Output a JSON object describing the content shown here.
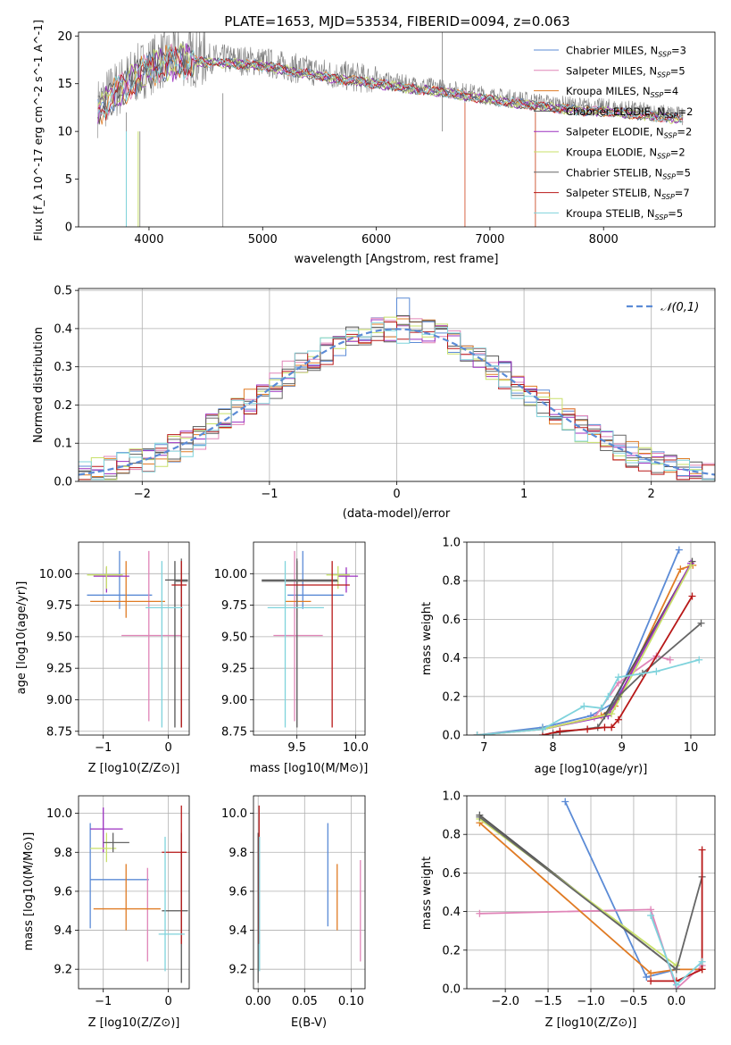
{
  "colors": [
    "#5b8bd6",
    "#e085b8",
    "#e07b24",
    "#555555",
    "#9b30c0",
    "#c8e06a",
    "#666666",
    "#b81818",
    "#7fd3dc"
  ],
  "chart_data": [
    {
      "id": "spectrum",
      "type": "line",
      "title": "PLATE=1653, MJD=53534, FIBERID=0094, z=0.063",
      "xlabel": "wavelength [Angstrom, rest frame]",
      "ylabel": "Flux [f_λ 10^-17 erg cm^-2 s^-1 A^-1]",
      "xlim": [
        3380,
        8980
      ],
      "ylim": [
        0,
        20.4
      ],
      "xticks": [
        4000,
        5000,
        6000,
        7000,
        8000
      ],
      "yticks": [
        0,
        5,
        10,
        15,
        20
      ],
      "grid": false,
      "legend_position": "top-right",
      "observed_color": "#808080",
      "series": [
        {
          "name": "Chabrier MILES, N_SSP=3"
        },
        {
          "name": "Salpeter MILES, N_SSP=5"
        },
        {
          "name": "Kroupa MILES, N_SSP=4"
        },
        {
          "name": "Chabrier ELODIE, N_SSP=2"
        },
        {
          "name": "Salpeter ELODIE, N_SSP=2"
        },
        {
          "name": "Kroupa ELODIE, N_SSP=2"
        },
        {
          "name": "Chabrier STELIB, N_SSP=5"
        },
        {
          "name": "Salpeter STELIB, N_SSP=7"
        },
        {
          "name": "Kroupa STELIB, N_SSP=5"
        }
      ],
      "continuum": {
        "x": [
          3550,
          3650,
          3800,
          3950,
          4100,
          4300,
          4600,
          5000,
          5300,
          5600,
          6000,
          6300,
          6600,
          6800,
          7000,
          7200,
          7400,
          7600,
          7800,
          8000,
          8200,
          8400,
          8600,
          8700
        ],
        "y": [
          12.5,
          13.8,
          15.2,
          16.5,
          17.5,
          17.8,
          17.6,
          17.3,
          16.6,
          16.0,
          15.4,
          14.9,
          14.5,
          14.1,
          13.7,
          13.4,
          13.1,
          12.8,
          12.6,
          12.5,
          12.3,
          12.0,
          11.8,
          11.6
        ]
      },
      "spikes": [
        {
          "x": 3800,
          "y0": 0,
          "y1": 12
        },
        {
          "x": 3920,
          "y0": 0,
          "y1": 10
        },
        {
          "x": 4650,
          "y0": 0,
          "y1": 14
        },
        {
          "x": 6580,
          "y0": 10,
          "y1": 20.4
        },
        {
          "x": 6780,
          "y0": 0,
          "y1": 14
        },
        {
          "x": 7400,
          "y0": 0,
          "y1": 13
        }
      ]
    },
    {
      "id": "residuals",
      "type": "step",
      "xlabel": "(data-model)/error",
      "ylabel": "Normed distribution",
      "xlim": [
        -2.5,
        2.5
      ],
      "ylim": [
        0,
        0.505
      ],
      "xticks": [
        -2,
        -1,
        0,
        1,
        2
      ],
      "yticks": [
        0.0,
        0.1,
        0.2,
        0.3,
        0.4,
        0.5
      ],
      "grid": true,
      "legend_position": "top-right",
      "reference": {
        "name": "𝒩(0,1)",
        "mean": 0,
        "sigma": 1,
        "color": "#5b8bd6"
      },
      "bin_width": 0.1,
      "peak_series_bin": {
        "series": 0,
        "x": 0.05,
        "y": 0.48
      }
    },
    {
      "id": "age-vs-Z",
      "type": "errorbar",
      "xlabel": "Z [log10(Z/Z⊙)]",
      "ylabel": "age [log10(age/yr)]",
      "xlim": [
        -1.38,
        0.32
      ],
      "ylim": [
        8.72,
        10.25
      ],
      "xticks": [
        -1,
        0
      ],
      "yticks": [
        8.75,
        9.0,
        9.25,
        9.5,
        9.75,
        10.0
      ],
      "grid": true,
      "points": [
        {
          "c": 0,
          "x": -0.75,
          "y": 9.83,
          "xlo": -1.25,
          "xhi": -0.25,
          "ylo": 9.72,
          "yhi": 10.18
        },
        {
          "c": 1,
          "x": -0.3,
          "y": 9.51,
          "xlo": -0.72,
          "xhi": 0.2,
          "ylo": 8.83,
          "yhi": 10.18
        },
        {
          "c": 2,
          "x": -0.65,
          "y": 9.78,
          "xlo": -1.2,
          "xhi": -0.05,
          "ylo": 9.65,
          "yhi": 10.1
        },
        {
          "c": 3,
          "x": 0.1,
          "y": 9.95,
          "xlo": -0.05,
          "xhi": 0.3,
          "ylo": 8.78,
          "yhi": 10.1
        },
        {
          "c": 4,
          "x": -0.95,
          "y": 9.98,
          "xlo": -1.15,
          "xhi": -0.6,
          "ylo": 9.85,
          "yhi": 10.05
        },
        {
          "c": 5,
          "x": -0.95,
          "y": 9.99,
          "xlo": -1.25,
          "xhi": -0.7,
          "ylo": 9.88,
          "yhi": 10.06
        },
        {
          "c": 6,
          "x": 0.2,
          "y": 9.94,
          "xlo": 0.1,
          "xhi": 0.3,
          "ylo": 8.78,
          "yhi": 10.12
        },
        {
          "c": 7,
          "x": 0.2,
          "y": 9.91,
          "xlo": 0.05,
          "xhi": 0.28,
          "ylo": 8.78,
          "yhi": 10.1
        },
        {
          "c": 8,
          "x": -0.1,
          "y": 9.73,
          "xlo": -0.35,
          "xhi": 0.22,
          "ylo": 8.78,
          "yhi": 10.1
        }
      ]
    },
    {
      "id": "age-vs-mass",
      "type": "errorbar",
      "xlabel": "mass [log10(M/M⊙)]",
      "ylabel": "",
      "xlim": [
        9.13,
        10.08
      ],
      "ylim": [
        8.72,
        10.25
      ],
      "xticks": [
        9.5,
        10.0
      ],
      "yticks": [
        8.75,
        9.0,
        9.25,
        9.5,
        9.75,
        10.0
      ],
      "grid": true,
      "points": [
        {
          "c": 0,
          "x": 9.55,
          "y": 9.83,
          "xlo": 9.42,
          "xhi": 9.9,
          "ylo": 9.72,
          "yhi": 10.18
        },
        {
          "c": 1,
          "x": 9.48,
          "y": 9.51,
          "xlo": 9.3,
          "xhi": 9.72,
          "ylo": 8.83,
          "yhi": 10.18
        },
        {
          "c": 2,
          "x": 9.5,
          "y": 9.78,
          "xlo": 9.4,
          "xhi": 9.62,
          "ylo": 9.65,
          "yhi": 10.1
        },
        {
          "c": 3,
          "x": 9.5,
          "y": 9.95,
          "xlo": 9.2,
          "xhi": 9.85,
          "ylo": 8.78,
          "yhi": 10.1
        },
        {
          "c": 4,
          "x": 9.92,
          "y": 9.98,
          "xlo": 9.85,
          "xhi": 10.02,
          "ylo": 9.85,
          "yhi": 10.05
        },
        {
          "c": 5,
          "x": 9.85,
          "y": 9.99,
          "xlo": 9.75,
          "xhi": 9.95,
          "ylo": 9.88,
          "yhi": 10.06
        },
        {
          "c": 6,
          "x": 9.5,
          "y": 9.94,
          "xlo": 9.2,
          "xhi": 9.85,
          "ylo": 8.78,
          "yhi": 10.12
        },
        {
          "c": 7,
          "x": 9.8,
          "y": 9.91,
          "xlo": 9.4,
          "xhi": 9.95,
          "ylo": 8.78,
          "yhi": 10.1
        },
        {
          "c": 8,
          "x": 9.4,
          "y": 9.73,
          "xlo": 9.25,
          "xhi": 9.73,
          "ylo": 8.78,
          "yhi": 10.1
        }
      ]
    },
    {
      "id": "cumulative-age",
      "type": "line",
      "xlabel": "age [log10(age/yr)]",
      "ylabel": "mass weight",
      "xlim": [
        6.75,
        10.35
      ],
      "ylim": [
        0,
        1.0
      ],
      "xticks": [
        7,
        8,
        9,
        10
      ],
      "yticks": [
        0.0,
        0.2,
        0.4,
        0.6,
        0.8,
        1.0
      ],
      "grid": true,
      "series": [
        {
          "c": 0,
          "x": [
            6.9,
            7.85,
            8.55,
            8.9,
            9.83
          ],
          "y": [
            0.0,
            0.04,
            0.1,
            0.17,
            0.96
          ]
        },
        {
          "c": 1,
          "x": [
            6.9,
            7.85,
            8.6,
            8.95,
            9.5,
            9.7
          ],
          "y": [
            0.0,
            0.03,
            0.09,
            0.27,
            0.41,
            0.39
          ]
        },
        {
          "c": 2,
          "x": [
            6.9,
            7.85,
            8.7,
            8.9,
            9.85,
            10.03
          ],
          "y": [
            0.0,
            0.03,
            0.1,
            0.15,
            0.86,
            0.88
          ]
        },
        {
          "c": 3,
          "x": [
            7.85,
            8.75,
            10.02
          ],
          "y": [
            0.03,
            0.1,
            0.9
          ]
        },
        {
          "c": 4,
          "x": [
            7.85,
            8.8,
            10.0
          ],
          "y": [
            0.03,
            0.1,
            0.89
          ]
        },
        {
          "c": 5,
          "x": [
            7.85,
            8.85,
            10.0
          ],
          "y": [
            0.03,
            0.11,
            0.88
          ]
        },
        {
          "c": 6,
          "x": [
            8.0,
            8.65,
            8.95,
            9.3,
            10.15
          ],
          "y": [
            0.01,
            0.04,
            0.2,
            0.32,
            0.58
          ]
        },
        {
          "c": 7,
          "x": [
            7.85,
            8.1,
            8.5,
            8.75,
            8.85,
            8.95,
            10.02
          ],
          "y": [
            0.0,
            0.02,
            0.03,
            0.04,
            0.04,
            0.08,
            0.72
          ]
        },
        {
          "c": 8,
          "x": [
            6.9,
            7.85,
            8.45,
            8.7,
            8.8,
            8.95,
            9.5,
            10.12
          ],
          "y": [
            0.0,
            0.03,
            0.15,
            0.14,
            0.2,
            0.3,
            0.33,
            0.39
          ]
        }
      ]
    },
    {
      "id": "mass-vs-Z",
      "type": "errorbar",
      "xlabel": "Z [log10(Z/Z⊙)]",
      "ylabel": "mass [log10(M/M⊙)]",
      "xlim": [
        -1.38,
        0.32
      ],
      "ylim": [
        9.1,
        10.09
      ],
      "xticks": [
        -1,
        0
      ],
      "yticks": [
        9.2,
        9.4,
        9.6,
        9.8,
        10.0
      ],
      "grid": true,
      "points": [
        {
          "c": 0,
          "x": -1.2,
          "y": 9.66,
          "xlo": -1.2,
          "xhi": -0.3,
          "ylo": 9.41,
          "yhi": 9.95
        },
        {
          "c": 1,
          "x": -0.32,
          "y": 9.48,
          "xlo": -0.32,
          "xhi": -0.32,
          "ylo": 9.24,
          "yhi": 9.72
        },
        {
          "c": 2,
          "x": -0.65,
          "y": 9.51,
          "xlo": -1.15,
          "xhi": -0.12,
          "ylo": 9.4,
          "yhi": 9.74
        },
        {
          "c": 3,
          "x": 0.2,
          "y": 9.5,
          "xlo": -0.1,
          "xhi": 0.3,
          "ylo": 9.13,
          "yhi": 9.9
        },
        {
          "c": 4,
          "x": -1.0,
          "y": 9.92,
          "xlo": -1.2,
          "xhi": -0.7,
          "ylo": 9.8,
          "yhi": 10.03
        },
        {
          "c": 5,
          "x": -0.95,
          "y": 9.82,
          "xlo": -1.2,
          "xhi": -0.8,
          "ylo": 9.75,
          "yhi": 9.9
        },
        {
          "c": 6,
          "x": -0.85,
          "y": 9.85,
          "xlo": -1.0,
          "xhi": -0.6,
          "ylo": 9.8,
          "yhi": 9.9
        },
        {
          "c": 7,
          "x": 0.2,
          "y": 9.8,
          "xlo": -0.1,
          "xhi": 0.28,
          "ylo": 9.33,
          "yhi": 10.04
        },
        {
          "c": 8,
          "x": -0.05,
          "y": 9.38,
          "xlo": -0.15,
          "xhi": 0.25,
          "ylo": 9.19,
          "yhi": 9.88
        }
      ]
    },
    {
      "id": "mass-vs-ebv",
      "type": "errorbar",
      "xlabel": "E(B-V)",
      "ylabel": "",
      "xlim": [
        -0.005,
        0.115
      ],
      "ylim": [
        9.1,
        10.09
      ],
      "xticks": [
        0.0,
        0.05,
        0.1
      ],
      "yticks": [
        9.2,
        9.4,
        9.6,
        9.8,
        10.0
      ],
      "grid": true,
      "points": [
        {
          "c": 0,
          "x": 0.075,
          "y": 9.66,
          "xlo": 0.075,
          "xhi": 0.075,
          "ylo": 9.42,
          "yhi": 9.95
        },
        {
          "c": 1,
          "x": 0.11,
          "y": 9.48,
          "xlo": 0.11,
          "xhi": 0.11,
          "ylo": 9.24,
          "yhi": 9.76
        },
        {
          "c": 2,
          "x": 0.085,
          "y": 9.51,
          "xlo": 0.085,
          "xhi": 0.085,
          "ylo": 9.4,
          "yhi": 9.74
        },
        {
          "c": 3,
          "x": 0.0,
          "y": 9.5,
          "xlo": 0.0,
          "xhi": 0.0,
          "ylo": 9.13,
          "yhi": 9.9
        },
        {
          "c": 7,
          "x": 0.001,
          "y": 9.8,
          "xlo": 0.001,
          "xhi": 0.001,
          "ylo": 9.33,
          "yhi": 10.04
        },
        {
          "c": 8,
          "x": 0.0015,
          "y": 9.38,
          "xlo": 0.0015,
          "xhi": 0.0015,
          "ylo": 9.19,
          "yhi": 9.88
        }
      ]
    },
    {
      "id": "cumulative-Z",
      "type": "line",
      "xlabel": "Z [log10(Z/Z⊙)]",
      "ylabel": "mass weight",
      "xlim": [
        -2.45,
        0.45
      ],
      "ylim": [
        0,
        1.0
      ],
      "xticks": [
        -2.0,
        -1.5,
        -1.0,
        -0.5,
        0.0
      ],
      "yticks": [
        0.0,
        0.2,
        0.4,
        0.6,
        0.8,
        1.0
      ],
      "grid": true,
      "series": [
        {
          "c": 0,
          "x": [
            -1.3,
            -0.35,
            0.0
          ],
          "y": [
            0.97,
            0.06,
            0.1
          ]
        },
        {
          "c": 1,
          "x": [
            -2.3,
            -0.3,
            0.0,
            0.3
          ],
          "y": [
            0.39,
            0.41,
            0.0,
            0.12
          ]
        },
        {
          "c": 2,
          "x": [
            -2.3,
            -0.3,
            0.0,
            0.3
          ],
          "y": [
            0.86,
            0.08,
            0.1,
            0.1
          ]
        },
        {
          "c": 3,
          "x": [
            -2.3,
            0.0
          ],
          "y": [
            0.9,
            0.1
          ]
        },
        {
          "c": 5,
          "x": [
            -2.3,
            0.0
          ],
          "y": [
            0.88,
            0.12
          ]
        },
        {
          "c": 6,
          "x": [
            -2.3,
            0.0,
            0.3
          ],
          "y": [
            0.89,
            0.1,
            0.58
          ]
        },
        {
          "c": 7,
          "x": [
            -0.3,
            0.0,
            0.3,
            0.3
          ],
          "y": [
            0.04,
            0.04,
            0.1,
            0.72
          ]
        },
        {
          "c": 8,
          "x": [
            -0.3,
            0.0,
            0.3
          ],
          "y": [
            0.38,
            0.02,
            0.14
          ]
        }
      ]
    }
  ]
}
